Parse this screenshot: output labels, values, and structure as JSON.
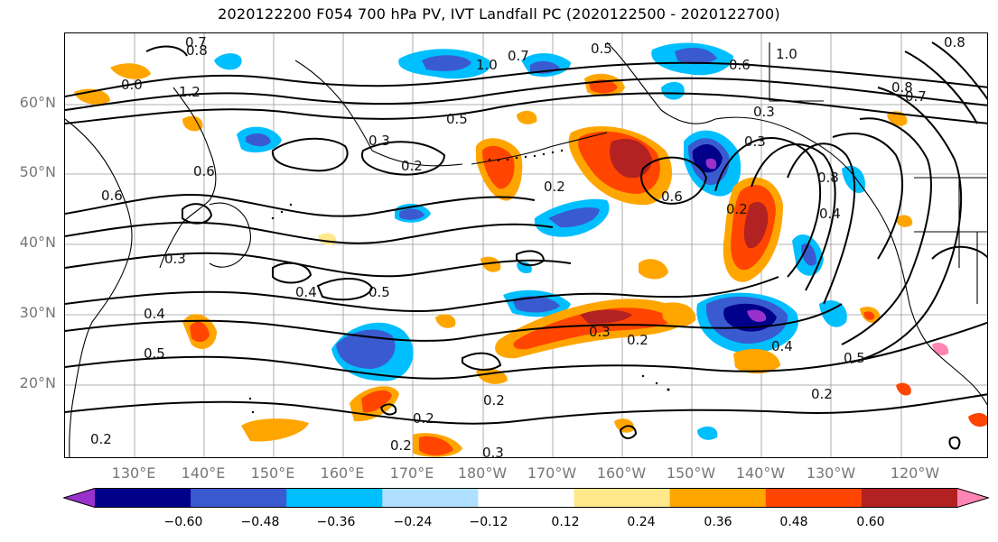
{
  "title": "2020122200 F054 700 hPa PV, IVT Landfall PC (2020122500 - 2020122700)",
  "lat_labels": [
    "60°N",
    "50°N",
    "40°N",
    "30°N",
    "20°N"
  ],
  "lon_labels": [
    "130°E",
    "140°E",
    "150°E",
    "160°E",
    "170°E",
    "180°W",
    "170°W",
    "160°W",
    "150°W",
    "140°W",
    "130°W",
    "120°W"
  ],
  "colorbar": {
    "tick_labels": [
      "−0.60",
      "−0.48",
      "−0.36",
      "−0.24",
      "−0.12",
      "0.12",
      "0.24",
      "0.36",
      "0.48",
      "0.60"
    ],
    "colors": [
      "#9932cc",
      "#00008b",
      "#3a5bd0",
      "#00bfff",
      "#b0e0ff",
      "#ffffff",
      "#ffe88a",
      "#ffa500",
      "#ff4500",
      "#b22222",
      "#ff85b4"
    ]
  },
  "contour_labels": [
    "0.7",
    "0.8",
    "1.2",
    "0.0",
    "1.0",
    "0.7",
    "0.5",
    "0.6",
    "1.0",
    "0.8",
    "0.7",
    "0.8",
    "0.5",
    "0.3",
    "0.2",
    "0.6",
    "0.6",
    "0.3",
    "0.3",
    "0.8",
    "0.2",
    "0.6",
    "0.2",
    "0.4",
    "0.4",
    "0.5",
    "0.4",
    "0.5",
    "0.3",
    "0.3",
    "0.2",
    "0.4",
    "0.5",
    "0.2",
    "0.2",
    "0.2",
    "0.2",
    "0.3",
    "0.2"
  ]
}
